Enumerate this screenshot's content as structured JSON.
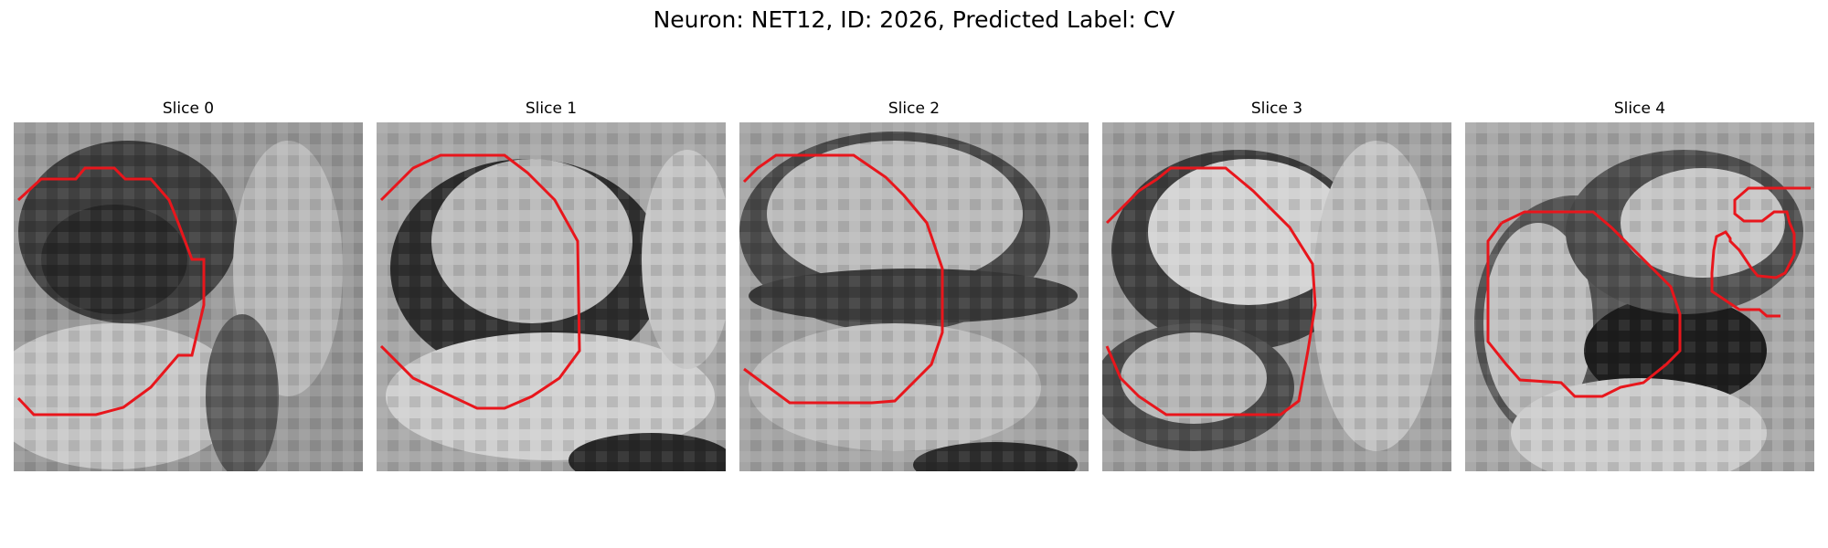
{
  "figure": {
    "title": "Neuron: NET12, ID: 2026, Predicted Label: CV"
  },
  "panels": [
    {
      "title": "Slice 0"
    },
    {
      "title": "Slice 1"
    },
    {
      "title": "Slice 2"
    },
    {
      "title": "Slice 3"
    },
    {
      "title": "Slice 4"
    }
  ],
  "colors": {
    "contour": "#e8161c"
  }
}
